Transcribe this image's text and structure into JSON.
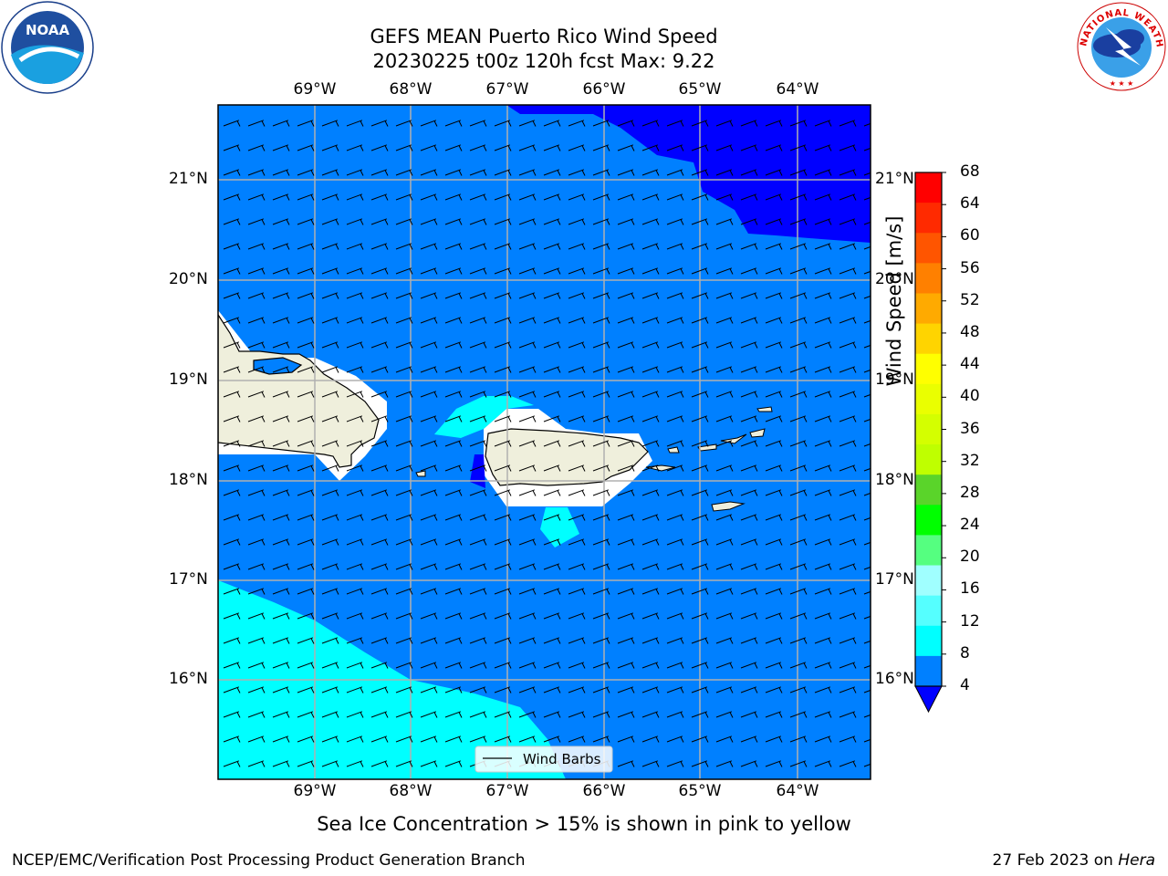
{
  "title_line1": "GEFS MEAN Puerto Rico Wind Speed",
  "title_line2": "20230225 t00z 120h fcst   Max: 9.22",
  "lon_labels": [
    "69°W",
    "68°W",
    "67°W",
    "66°W",
    "65°W",
    "64°W"
  ],
  "lat_labels": [
    "21°N",
    "20°N",
    "19°N",
    "18°N",
    "17°N",
    "16°N"
  ],
  "colorbar": {
    "title": "Wind Speed [m/s]",
    "ticks": [
      "68",
      "64",
      "60",
      "56",
      "52",
      "48",
      "44",
      "40",
      "36",
      "32",
      "28",
      "24",
      "20",
      "16",
      "12",
      "8",
      "4"
    ],
    "colors": [
      "#ff0000",
      "#ff2a00",
      "#ff5500",
      "#ff8000",
      "#ffaa00",
      "#ffd400",
      "#ffff00",
      "#eaff00",
      "#d4ff00",
      "#bfff00",
      "#5ad42a",
      "#00ff00",
      "#55ff80",
      "#a0ffff",
      "#55ffff",
      "#00ffff",
      "#0080ff"
    ],
    "extend_color": "#0000ff"
  },
  "legend_label": "Wind Barbs",
  "note": "Sea Ice Concentration > 15% is shown in pink to yellow",
  "credit": "NCEP/EMC/Verification Post Processing Product Generation Branch",
  "date_text": "27 Feb 2023 on ",
  "date_machine": "Hera",
  "logos": {
    "left": "NOAA",
    "right": "NATIONAL WEATHER SERVICE"
  },
  "colors": {
    "ocean_blue": "#0080ff",
    "dark_blue": "#0000ff",
    "cyan": "#00ffff",
    "land": "#efefdc",
    "grid": "#b0b0b0"
  }
}
